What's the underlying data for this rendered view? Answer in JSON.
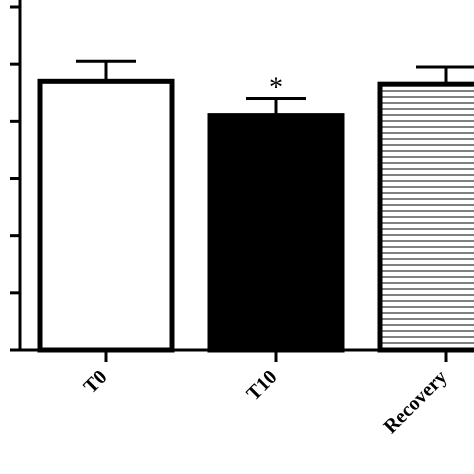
{
  "chart_data": {
    "type": "bar",
    "categories": [
      "T0",
      "T10",
      "Recovery"
    ],
    "values": [
      4.7,
      4.1,
      4.65
    ],
    "errors": [
      0.35,
      0.3,
      0.3
    ],
    "annotations": [
      {
        "category": "T10",
        "text": "*"
      }
    ],
    "fills": [
      "open",
      "solid",
      "horizontal-stripes"
    ],
    "ylim": [
      0,
      6
    ],
    "title": "",
    "xlabel": "",
    "ylabel": "",
    "grid": false,
    "colors": {
      "stroke": "#000000",
      "open": "#ffffff",
      "solid": "#000000"
    }
  }
}
